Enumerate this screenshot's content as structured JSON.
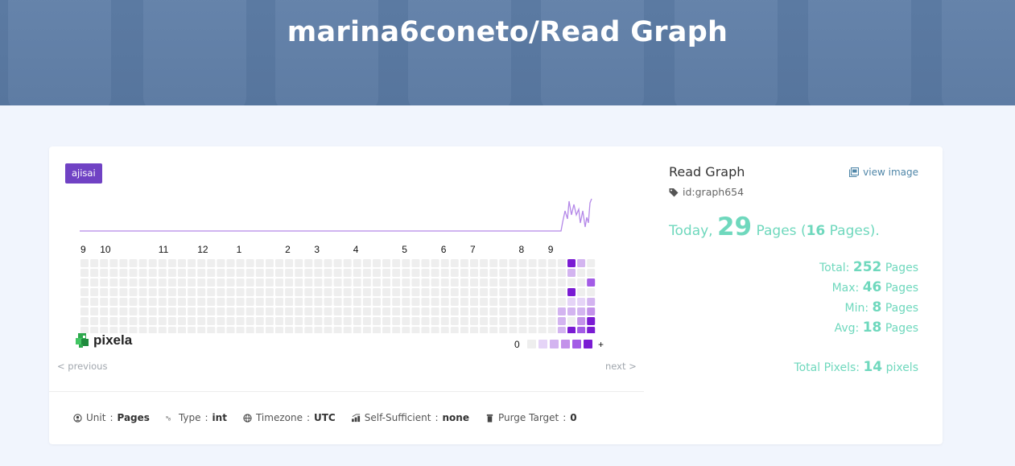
{
  "header": {
    "title": "marina6coneto/Read Graph"
  },
  "graph": {
    "badge": "ajisai",
    "months": [
      "9",
      "10",
      "11",
      "12",
      "1",
      "2",
      "3",
      "4",
      "5",
      "6",
      "7",
      "8",
      "9"
    ],
    "logo_text": "pixela",
    "legend_min": "0",
    "legend_max": "+",
    "colors": {
      "empty": "#eeeeee",
      "level1": "#e5d4f7",
      "level2": "#d3b4f0",
      "level3": "#c392ea",
      "level4": "#a35ce6",
      "level5": "#7a1bd3",
      "sparkline": "#b488e8"
    },
    "nav_prev": "< previous",
    "nav_next": "next >"
  },
  "meta": {
    "unit_label": "Unit",
    "unit_value": "Pages",
    "type_label": "Type",
    "type_value": "int",
    "timezone_label": "Timezone",
    "timezone_value": "UTC",
    "self_label": "Self-Sufficient",
    "self_value": "none",
    "purge_label": "Purge Target",
    "purge_value": "0",
    "separator": ":"
  },
  "info": {
    "name": "Read Graph",
    "id": "id:graph654",
    "view_image": "view image",
    "today_prefix": "Today",
    "today_value": "29",
    "today_unit": "Pages",
    "today_diff": "16",
    "today_diff_unit": "Pages",
    "total_label": "Total:",
    "total_value": "252",
    "max_label": "Max:",
    "max_value": "46",
    "min_label": "Min:",
    "min_value": "8",
    "avg_label": "Avg:",
    "avg_value": "18",
    "unit": "Pages",
    "pixels_label": "Total Pixels:",
    "pixels_value": "14",
    "pixels_unit": "pixels"
  }
}
